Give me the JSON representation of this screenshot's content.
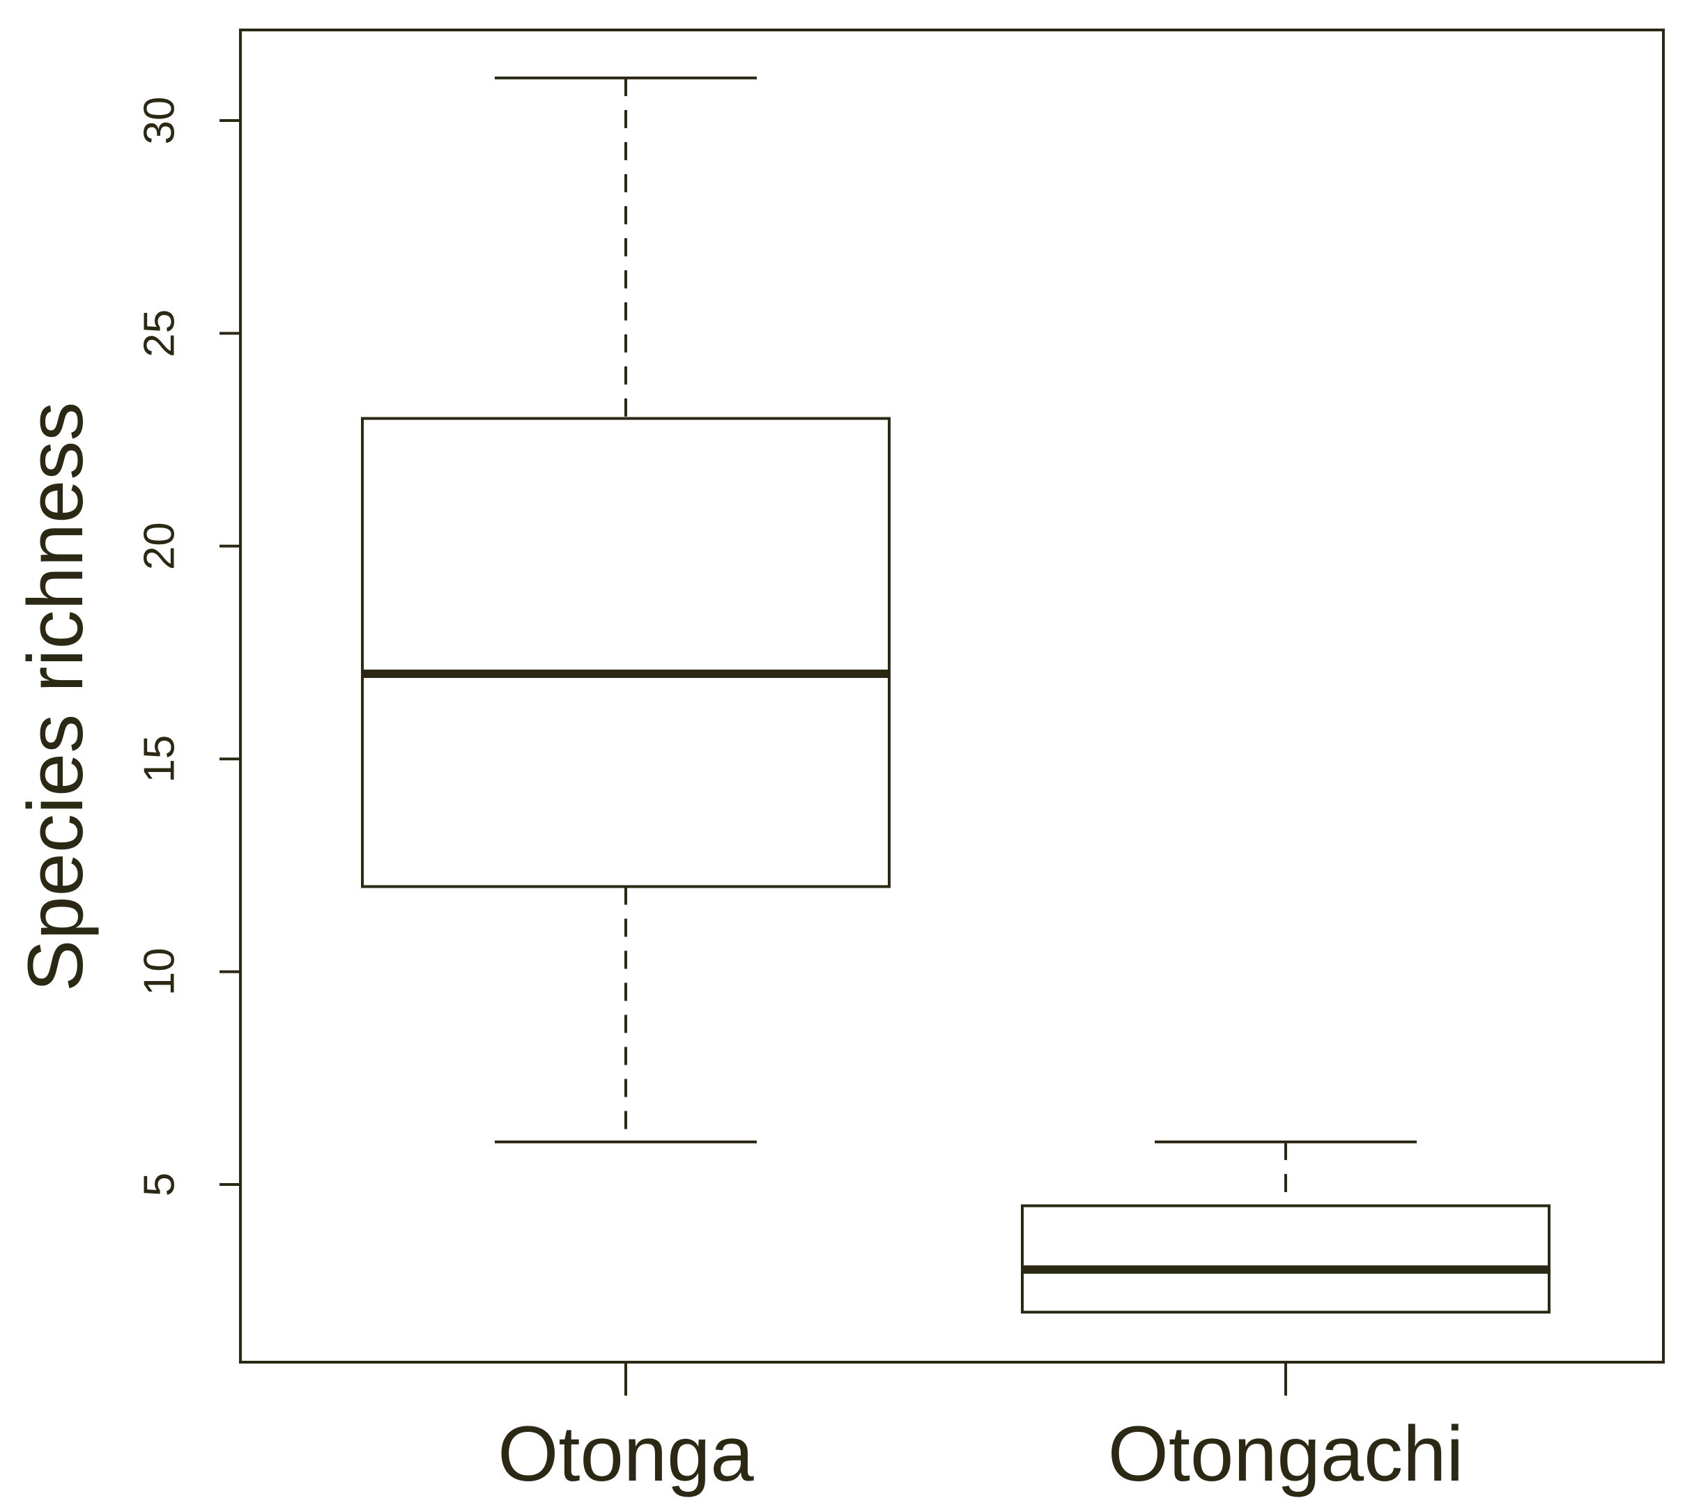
{
  "chart_data": {
    "type": "box",
    "ylabel": "Species richness",
    "xlabel": "",
    "title": "",
    "ylim": [
      1,
      32.4
    ],
    "yticks": [
      5,
      10,
      15,
      20,
      25,
      30
    ],
    "ytick_labels": [
      "5",
      "10",
      "15",
      "20",
      "25",
      "30"
    ],
    "categories": [
      "Otonga",
      "Otongachi"
    ],
    "series": [
      {
        "category": "Otonga",
        "whisker_low": 6,
        "q1": 12,
        "median": 17,
        "q3": 23,
        "whisker_high": 31
      },
      {
        "category": "Otongachi",
        "whisker_low": 2,
        "q1": 2,
        "median": 3,
        "q3": 4.5,
        "whisker_high": 6
      }
    ],
    "grid": false,
    "legend": "none",
    "colors": {
      "stroke": "#2b2814",
      "box_fill": "#ffffff",
      "background": "#ffffff"
    }
  }
}
